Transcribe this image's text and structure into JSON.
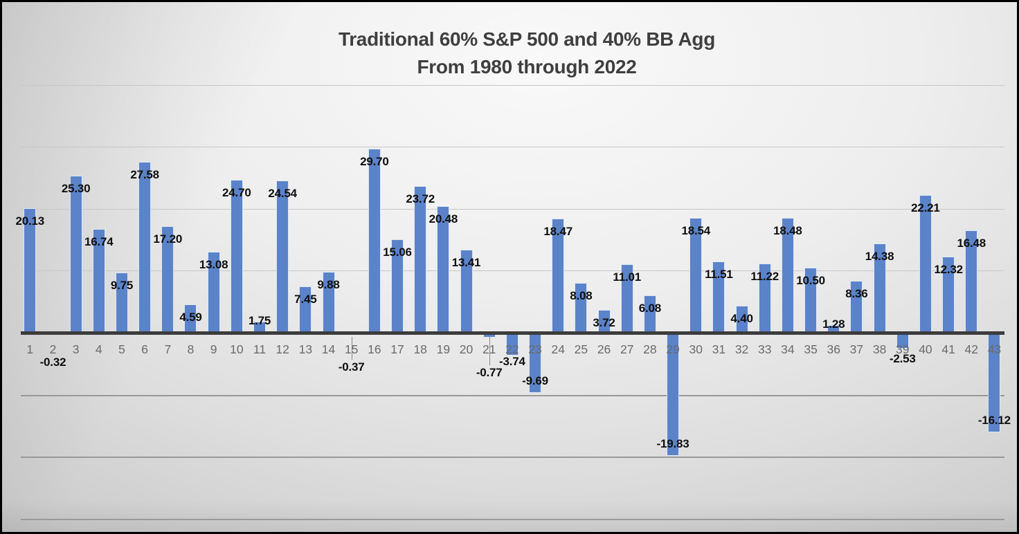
{
  "chart_data": {
    "type": "bar",
    "title": "Traditional 60% S&P 500 and 40% BB Agg",
    "subtitle": "From 1980 through 2022",
    "categories": [
      1,
      2,
      3,
      4,
      5,
      6,
      7,
      8,
      9,
      10,
      11,
      12,
      13,
      14,
      15,
      16,
      17,
      18,
      19,
      20,
      21,
      22,
      23,
      24,
      25,
      26,
      27,
      28,
      29,
      30,
      31,
      32,
      33,
      34,
      35,
      36,
      37,
      38,
      39,
      40,
      41,
      42,
      43
    ],
    "values": [
      20.13,
      -0.32,
      25.3,
      16.74,
      9.75,
      27.58,
      17.2,
      4.59,
      13.08,
      24.7,
      1.75,
      24.54,
      7.45,
      9.88,
      -0.37,
      29.7,
      15.06,
      23.72,
      20.48,
      13.41,
      -0.77,
      -3.74,
      -9.69,
      18.47,
      8.08,
      3.72,
      11.01,
      6.08,
      -19.83,
      18.54,
      11.51,
      4.4,
      11.22,
      18.48,
      10.5,
      1.28,
      8.36,
      14.38,
      -2.53,
      22.21,
      12.32,
      16.48,
      -16.12
    ],
    "xlabel": "",
    "ylabel": "",
    "ylim": [
      -30,
      40
    ],
    "gridline_values": [
      40,
      30,
      20,
      10,
      -10,
      -20,
      -30
    ],
    "grid": true,
    "legend": false,
    "data_label_format": "0.00"
  },
  "colors": {
    "bar_fill": "#5b83c9",
    "bar_border": "#dde6f5",
    "axis_line": "#3c3c3c",
    "grid_above_zero": "#c7c7c7",
    "grid_below_zero": "#999999",
    "leader_line": "#8a8a8a",
    "data_label_text": "#0f0f0f",
    "category_label_text": "#6a6a6a",
    "title_text": "#3f3f3f"
  }
}
